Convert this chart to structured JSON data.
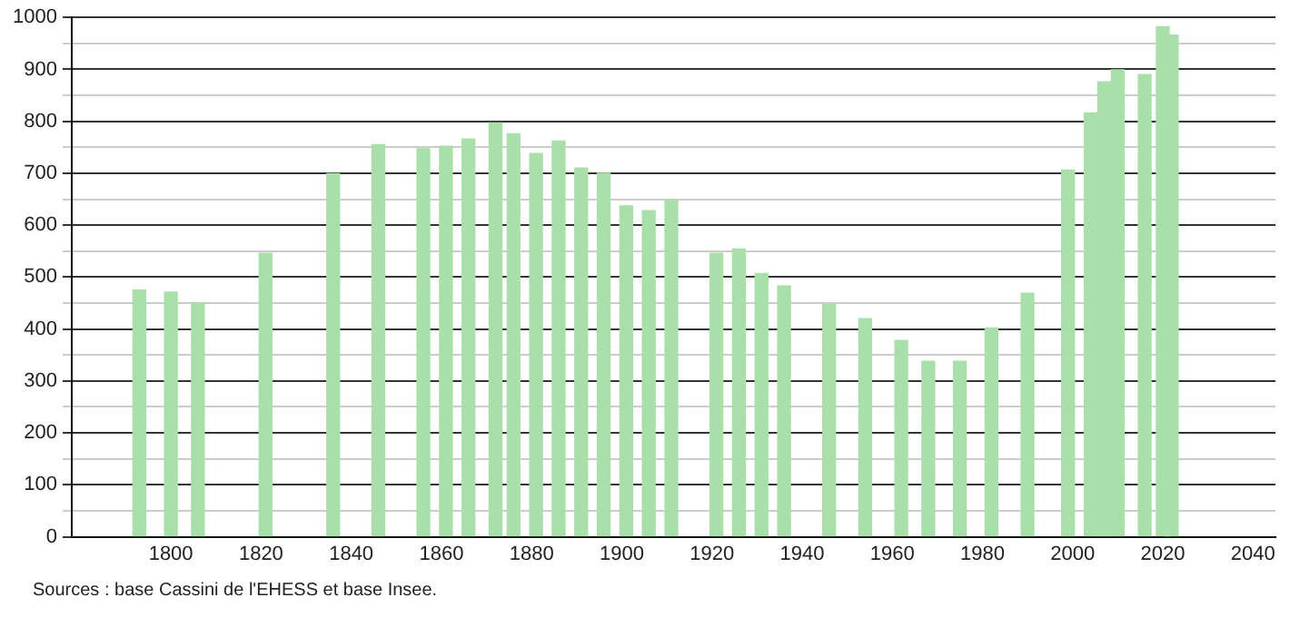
{
  "chart_data": {
    "type": "bar",
    "color": "#a9e0a9",
    "x": [
      1793,
      1800,
      1806,
      1821,
      1836,
      1846,
      1856,
      1861,
      1866,
      1872,
      1876,
      1881,
      1886,
      1891,
      1896,
      1901,
      1906,
      1911,
      1921,
      1926,
      1931,
      1936,
      1946,
      1954,
      1962,
      1968,
      1975,
      1982,
      1990,
      1999,
      2004,
      2007,
      2010,
      2016,
      2020,
      2022
    ],
    "values": [
      475,
      471,
      450,
      546,
      699,
      755,
      747,
      752,
      766,
      797,
      776,
      738,
      762,
      710,
      700,
      637,
      628,
      648,
      546,
      554,
      507,
      483,
      447,
      420,
      378,
      338,
      338,
      402,
      469,
      706,
      816,
      876,
      899,
      890,
      982,
      966
    ],
    "xlim": [
      1778,
      2045
    ],
    "xticks": [
      1800,
      1820,
      1840,
      1860,
      1880,
      1900,
      1920,
      1940,
      1960,
      1980,
      2000,
      2020,
      2040
    ],
    "ylim": [
      0,
      1000
    ],
    "yticks": [
      0,
      {
        "value": 50,
        "label": null
      },
      100,
      {
        "value": 150,
        "label": null
      },
      200,
      {
        "value": 250,
        "label": null
      },
      300,
      {
        "value": 350,
        "label": null
      },
      400,
      {
        "value": 450,
        "label": null
      },
      500,
      {
        "value": 550,
        "label": null
      },
      600,
      {
        "value": 650,
        "label": null
      },
      700,
      {
        "value": 750,
        "label": null
      },
      800,
      {
        "value": 850,
        "label": null
      },
      900,
      {
        "value": 950,
        "label": null
      },
      1000
    ],
    "grid": "y",
    "annotations": [
      "Sources : base Cassini de l'EHESS et base Insee."
    ]
  }
}
